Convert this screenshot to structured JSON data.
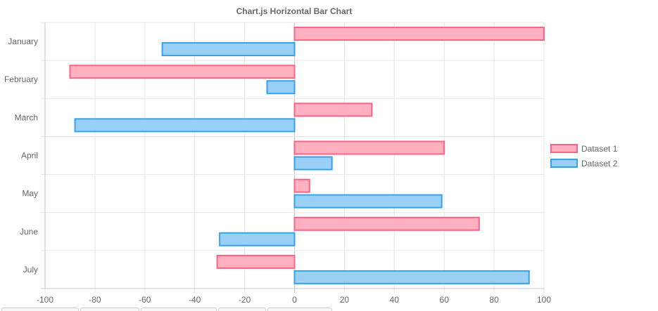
{
  "chart_data": {
    "type": "bar",
    "orientation": "horizontal",
    "title": "Chart.js Horizontal Bar Chart",
    "categories": [
      "January",
      "February",
      "March",
      "April",
      "May",
      "June",
      "July"
    ],
    "series": [
      {
        "name": "Dataset 1",
        "values": [
          100,
          -90,
          31,
          60,
          6,
          74,
          -31
        ],
        "fill": "#ffb1c1",
        "stroke": "#ff6384"
      },
      {
        "name": "Dataset 2",
        "values": [
          -53,
          -11,
          -88,
          15,
          59,
          -30,
          94
        ],
        "fill": "#9ad0f5",
        "stroke": "#36a2eb"
      }
    ],
    "xlim": [
      -100,
      100
    ],
    "xticks": [
      "-100",
      "-80",
      "-60",
      "-40",
      "-20",
      "0",
      "20",
      "40",
      "60",
      "80",
      "100"
    ],
    "grid": true,
    "legend": "right"
  },
  "colors": {
    "text": "#666666",
    "grid": "#e5e5e5",
    "axis": "#c8c8c8"
  }
}
